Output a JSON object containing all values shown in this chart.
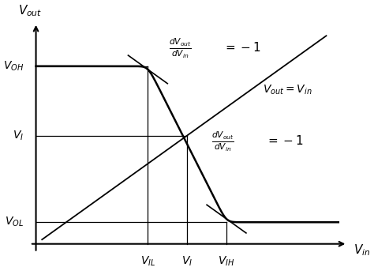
{
  "background": "#ffffff",
  "curve_color": "#000000",
  "line_color": "#000000",
  "text_color": "#000000",
  "VIL": 0.37,
  "VI": 0.5,
  "VIH": 0.63,
  "VOH": 0.82,
  "VOL": 0.1,
  "figsize": [
    4.74,
    3.43
  ],
  "dpi": 100
}
